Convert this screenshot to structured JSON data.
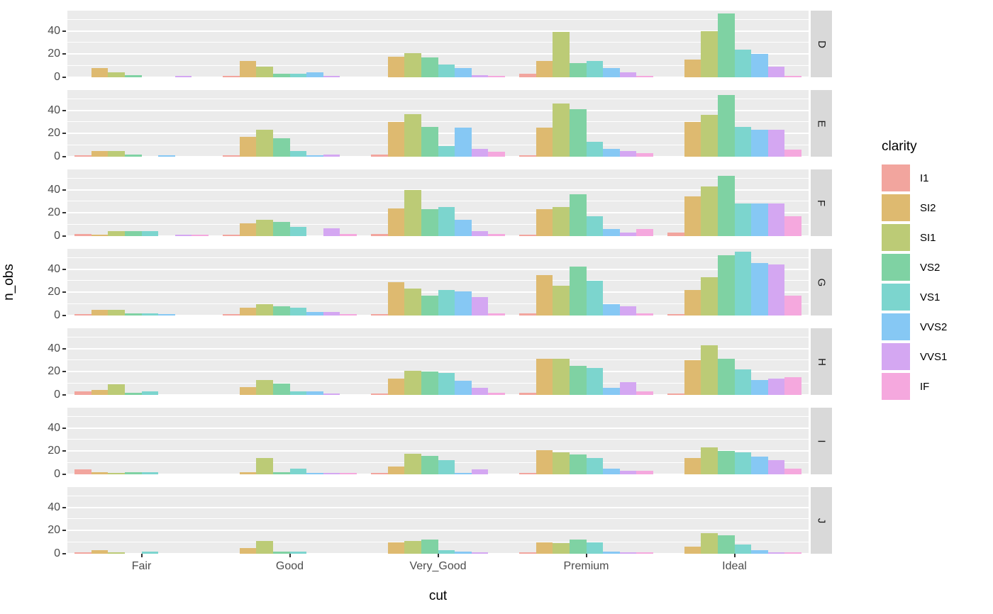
{
  "figure": {
    "x_title": "cut",
    "y_title": "n_obs"
  },
  "legend": {
    "title": "clarity",
    "items": [
      {
        "label": "I1",
        "color": "#F2A59E"
      },
      {
        "label": "SI2",
        "color": "#DEBA70"
      },
      {
        "label": "SI1",
        "color": "#BCCB76"
      },
      {
        "label": "VS2",
        "color": "#7FD2A3"
      },
      {
        "label": "VS1",
        "color": "#7CD5CE"
      },
      {
        "label": "VVS2",
        "color": "#86C8F4"
      },
      {
        "label": "VVS1",
        "color": "#D4A7F2"
      },
      {
        "label": "IF",
        "color": "#F5A8DE"
      }
    ]
  },
  "theme": {
    "panel_bg": "#EBEBEB",
    "strip_bg": "#D9D9D9",
    "grid_color": "#FFFFFF",
    "axis_text_color": "#4D4D4D",
    "tick_color": "#333333"
  },
  "chart_data": {
    "type": "bar",
    "subtype": "dodged, faceted rows",
    "title": "",
    "xlabel": "cut",
    "ylabel": "n_obs",
    "x_categories": [
      "Fair",
      "Good",
      "Very_Good",
      "Premium",
      "Ideal"
    ],
    "facet_variable": "color",
    "facets": [
      "D",
      "E",
      "F",
      "G",
      "H",
      "I",
      "J"
    ],
    "series_variable": "clarity",
    "clarity_levels": [
      "I1",
      "SI2",
      "SI1",
      "VS2",
      "VS1",
      "VVS2",
      "VVS1",
      "IF"
    ],
    "y_axis_ticks": [
      0,
      20,
      40
    ],
    "y_minor_gridlines": [
      10,
      30,
      50
    ],
    "ylim": [
      0,
      57.5
    ],
    "legend_position": "right",
    "values": {
      "D": {
        "Fair": [
          0,
          8,
          4,
          2,
          0,
          0,
          1,
          0
        ],
        "Good": [
          1,
          14,
          9,
          3,
          3,
          4,
          1,
          0
        ],
        "Very_Good": [
          0,
          18,
          21,
          17,
          11,
          8,
          2,
          1
        ],
        "Premium": [
          3,
          14,
          39,
          12,
          14,
          8,
          4,
          1
        ],
        "Ideal": [
          0,
          15,
          40,
          55,
          24,
          20,
          9,
          1
        ]
      },
      "E": {
        "Fair": [
          1,
          5,
          5,
          2,
          0,
          1,
          0,
          0
        ],
        "Good": [
          1,
          17,
          23,
          16,
          5,
          1,
          2,
          0
        ],
        "Very_Good": [
          2,
          30,
          37,
          26,
          9,
          25,
          7,
          4
        ],
        "Premium": [
          1,
          25,
          46,
          41,
          13,
          7,
          5,
          3
        ],
        "Ideal": [
          0,
          30,
          36,
          53,
          26,
          23,
          23,
          6
        ]
      },
      "F": {
        "Fair": [
          2,
          1,
          4,
          4,
          4,
          0,
          1,
          1
        ],
        "Good": [
          1,
          11,
          14,
          12,
          8,
          0,
          7,
          2
        ],
        "Very_Good": [
          2,
          24,
          40,
          23,
          25,
          14,
          4,
          2
        ],
        "Premium": [
          1,
          23,
          25,
          36,
          17,
          6,
          3,
          6
        ],
        "Ideal": [
          3,
          34,
          43,
          52,
          28,
          28,
          28,
          17
        ]
      },
      "G": {
        "Fair": [
          1,
          5,
          5,
          2,
          2,
          1,
          0,
          0
        ],
        "Good": [
          1,
          7,
          10,
          8,
          7,
          3,
          3,
          1
        ],
        "Very_Good": [
          1,
          29,
          23,
          17,
          22,
          21,
          16,
          2
        ],
        "Premium": [
          2,
          35,
          26,
          42,
          30,
          10,
          8,
          2
        ],
        "Ideal": [
          1,
          22,
          33,
          52,
          55,
          45,
          44,
          17
        ]
      },
      "H": {
        "Fair": [
          3,
          4,
          9,
          2,
          3,
          0,
          0,
          0
        ],
        "Good": [
          0,
          7,
          13,
          10,
          3,
          3,
          1,
          0
        ],
        "Very_Good": [
          1,
          14,
          21,
          20,
          19,
          12,
          6,
          2
        ],
        "Premium": [
          2,
          31,
          31,
          25,
          23,
          6,
          11,
          3
        ],
        "Ideal": [
          1,
          30,
          43,
          31,
          22,
          13,
          14,
          15
        ]
      },
      "I": {
        "Fair": [
          4,
          2,
          1,
          2,
          2,
          0,
          0,
          0
        ],
        "Good": [
          0,
          2,
          14,
          2,
          5,
          1,
          1,
          1
        ],
        "Very_Good": [
          1,
          7,
          18,
          16,
          12,
          1,
          4,
          0
        ],
        "Premium": [
          1,
          21,
          19,
          17,
          14,
          5,
          3,
          3
        ],
        "Ideal": [
          0,
          14,
          23,
          20,
          19,
          15,
          12,
          5
        ]
      },
      "J": {
        "Fair": [
          1,
          3,
          1,
          0,
          2,
          0,
          0,
          0
        ],
        "Good": [
          0,
          5,
          11,
          2,
          2,
          0,
          0,
          0
        ],
        "Very_Good": [
          0,
          10,
          11,
          12,
          3,
          2,
          1,
          0
        ],
        "Premium": [
          1,
          10,
          9,
          12,
          10,
          2,
          1,
          1
        ],
        "Ideal": [
          0,
          6,
          18,
          16,
          8,
          3,
          1,
          1
        ]
      }
    }
  }
}
